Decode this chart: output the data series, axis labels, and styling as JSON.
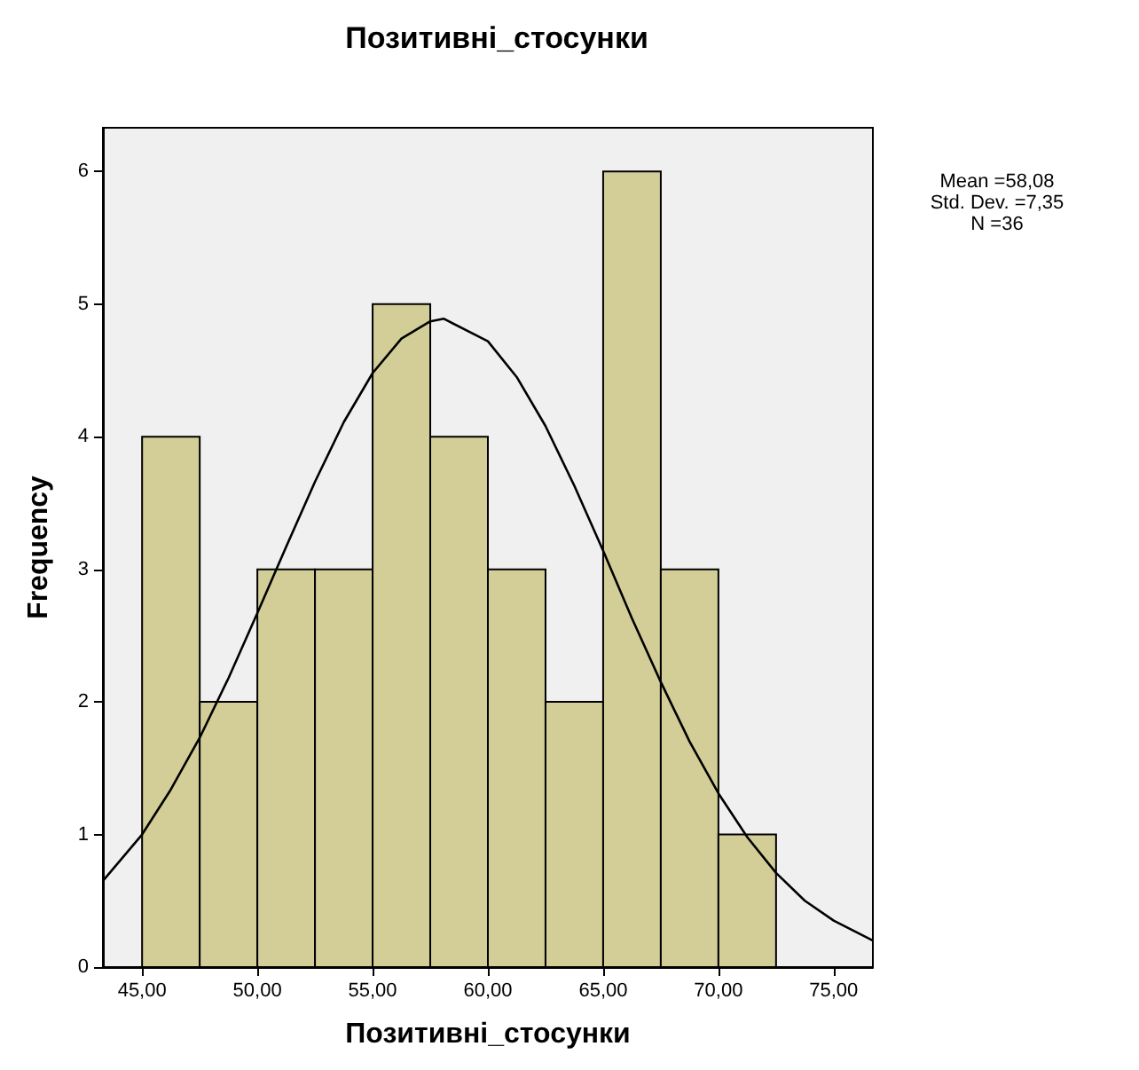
{
  "chart_data": {
    "type": "histogram",
    "title": "Позитивні_стосунки",
    "xlabel": "Позитивні_стосунки",
    "ylabel": "Frequency",
    "bins": [
      45,
      47.5,
      50,
      52.5,
      55,
      57.5,
      60,
      62.5,
      65,
      67.5,
      70,
      72.5
    ],
    "values": [
      4,
      2,
      3,
      3,
      5,
      4,
      3,
      2,
      6,
      3,
      1
    ],
    "color": "#d3ce97",
    "series": [
      {
        "type": "line",
        "color": "#000000",
        "marker": "none",
        "x": [
          43.3,
          45,
          46.25,
          47.5,
          48.75,
          50,
          51.25,
          52.5,
          53.75,
          55,
          56.25,
          57.5,
          58.08,
          60,
          61.25,
          62.5,
          63.75,
          65,
          66.25,
          67.5,
          68.75,
          70,
          71.25,
          72.5,
          73.75,
          75,
          76.7
        ],
        "values": [
          0.65,
          1.0,
          1.34,
          1.73,
          2.18,
          2.67,
          3.17,
          3.66,
          4.11,
          4.48,
          4.74,
          4.87,
          4.89,
          4.72,
          4.45,
          4.08,
          3.63,
          3.14,
          2.63,
          2.15,
          1.7,
          1.31,
          0.98,
          0.71,
          0.5,
          0.35,
          0.2
        ]
      }
    ],
    "xlim": [
      43.3,
      76.7
    ],
    "ylim": [
      0,
      6.33
    ],
    "xticks": [
      {
        "value": 45,
        "label": "45,00"
      },
      {
        "value": 50,
        "label": "50,00"
      },
      {
        "value": 55,
        "label": "55,00"
      },
      {
        "value": 60,
        "label": "60,00"
      },
      {
        "value": 65,
        "label": "65,00"
      },
      {
        "value": 70,
        "label": "70,00"
      },
      {
        "value": 75,
        "label": "75,00"
      }
    ],
    "yticks": [
      0,
      1,
      2,
      3,
      4,
      5,
      6
    ],
    "annotations": [
      "Mean =58,08",
      "Std. Dev. =7,35",
      "N =36"
    ],
    "grid": false
  }
}
